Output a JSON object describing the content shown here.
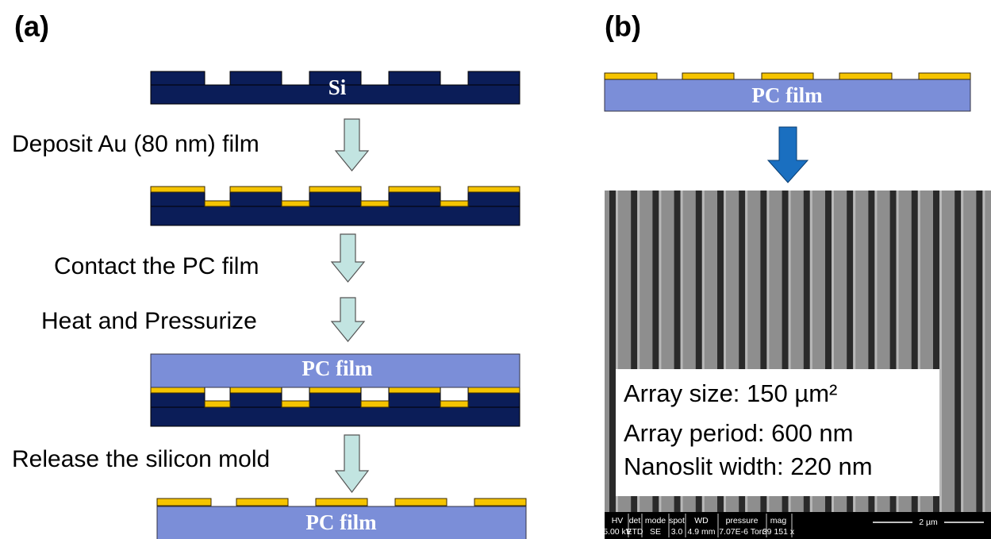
{
  "panels": [
    {
      "label": "(a)",
      "substrate_label": "Si",
      "steps": [
        "Deposit Au (80 nm) film",
        "Contact the PC film",
        "Heat and Pressurize",
        "Release the silicon mold"
      ],
      "film_labels": [
        "PC film",
        "PC film"
      ]
    },
    {
      "label": "(b)",
      "film_label": "PC film",
      "sem": {
        "annotations": [
          "Array size: 150 µm²",
          "Array period: 600 nm",
          "Nanoslit width: 220 nm"
        ],
        "info_bar": {
          "headers": [
            "HV",
            "det",
            "mode",
            "spot",
            "WD",
            "pressure",
            "mag"
          ],
          "values": [
            "5.00 kV",
            "ETD",
            "SE",
            "3.0",
            "4.9 mm",
            "7.07E-6 Torr",
            "39 151 x"
          ]
        },
        "scale_bar": "2 µm"
      }
    }
  ]
}
